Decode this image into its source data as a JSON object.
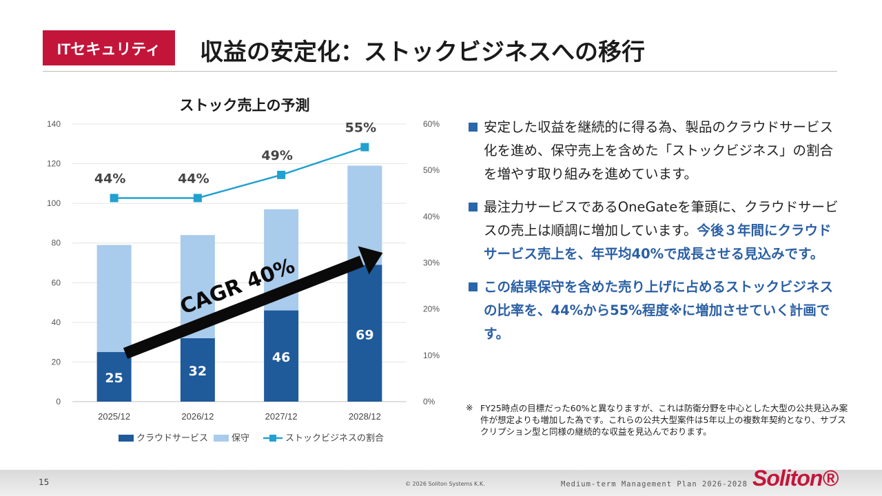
{
  "header": {
    "tag": "ITセキュリティ",
    "title": "収益の安定化：ストックビジネスへの移行"
  },
  "chart_data": {
    "type": "bar",
    "stacked": true,
    "title": "ストック売上の予測",
    "categories": [
      "2025/12",
      "2026/12",
      "2027/12",
      "2028/12"
    ],
    "series": [
      {
        "name": "クラウドサービス",
        "values": [
          25,
          32,
          46,
          69
        ],
        "color": "#1f5a9a"
      },
      {
        "name": "保守",
        "values": [
          54,
          52,
          51,
          50
        ],
        "color": "#a9cbec"
      }
    ],
    "line_series": {
      "name": "ストックビジネスの割合",
      "values": [
        44,
        44,
        49,
        55
      ],
      "color": "#22a0cf",
      "axis": "right"
    },
    "data_labels": [
      "25",
      "32",
      "46",
      "69"
    ],
    "line_labels": [
      "44%",
      "44%",
      "49%",
      "55%"
    ],
    "ylim": [
      0,
      140
    ],
    "yticks": [
      "0",
      "20",
      "40",
      "60",
      "80",
      "100",
      "120",
      "140"
    ],
    "y2lim": [
      0,
      60
    ],
    "y2ticks": [
      "0%",
      "10%",
      "20%",
      "30%",
      "40%",
      "50%",
      "60%"
    ],
    "legend_position": "bottom",
    "annotation": "CAGR 40%"
  },
  "bullets": [
    {
      "normal": "安定した収益を継続的に得る為、製品のクラウドサービス化を進め、保守売上を含めた「ストックビジネス」の割合を増やす取り組みを進めています。",
      "highlight": ""
    },
    {
      "normal": "最注力サービスであるOneGateを筆頭に、クラウドサービスの売上は順調に増加しています。",
      "highlight": "今後３年間にクラウドサービス売上を、年平均40%で成長させる見込みです。"
    },
    {
      "normal": "",
      "highlight": "この結果保守を含めた売り上げに占めるストックビジネスの比率を、44%から55%程度※に増加させていく計画です。"
    }
  ],
  "note": {
    "mark": "※",
    "text": "FY25時点の目標だった60%と異なりますが、これは防衛分野を中心とした大型の公共見込み案件が想定よりも増加した為です。これらの公共大型案件は5年以上の複数年契約となり、サブスクリプション型と同様の継続的な収益を見込んでおります。"
  },
  "footer": {
    "page": "15",
    "copyright": "© 2026 Soliton Systems K.K.",
    "plan": "Medium-term Management Plan 2026-2028",
    "logo": "Soliton®"
  }
}
